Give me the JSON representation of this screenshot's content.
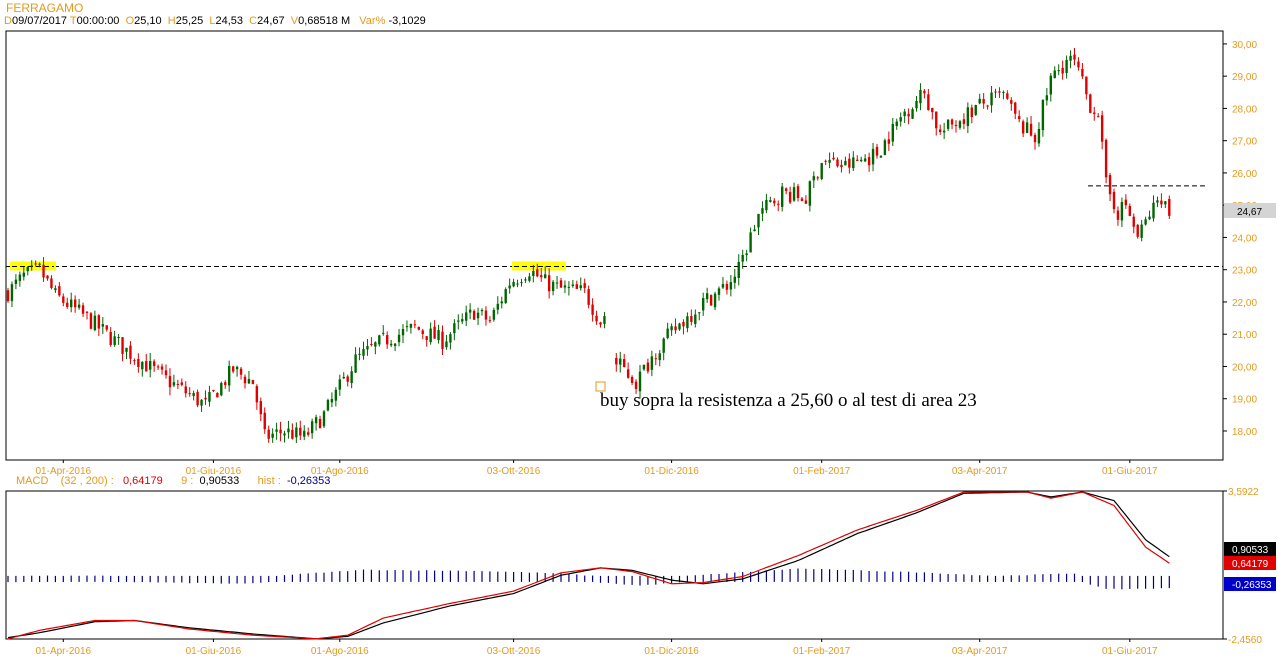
{
  "header": {
    "symbol": "FERRAGAMO",
    "date_key": "D",
    "date": "09/07/2017",
    "time_key": "T",
    "time": "00:00:00",
    "open_key": "O",
    "open": "25,10",
    "high_key": "H",
    "high": "25,25",
    "low_key": "L",
    "low": "24,53",
    "close_key": "C",
    "close": "24,67",
    "volume_key": "V",
    "volume": "0,68518 M",
    "var_key": "Var%",
    "var": "-3,1029"
  },
  "macd_header": {
    "name": "MACD",
    "params": "(32 , 200) :",
    "macd_value": "0,64179",
    "signal_label": "9 :",
    "signal_value": "0,90533",
    "hist_label": "hist :",
    "hist_value": "-0,26353"
  },
  "annotation": "buy sopra la resistenza a 25,60 o al test di area 23",
  "colors": {
    "up_candle": "#006600",
    "down_candle": "#e00000",
    "axis_text": "#e39a1e",
    "highlight": "#ffff00",
    "macd_line": "#e00000",
    "signal_line": "#000000",
    "histogram": "#000080"
  },
  "chart_data": [
    {
      "type": "candlestick",
      "title": "FERRAGAMO",
      "x_tick_labels": [
        "01-Apr-2016",
        "01-Giu-2016",
        "01-Ago-2016",
        "03-Ott-2016",
        "01-Dic-2016",
        "01-Feb-2017",
        "03-Apr-2017",
        "01-Giu-2017"
      ],
      "y_tick_labels": [
        "30,00",
        "29,00",
        "28,00",
        "27,00",
        "26,00",
        "25,00",
        "24,00",
        "23,00",
        "22,00",
        "21,00",
        "20,00",
        "19,00",
        "18,00"
      ],
      "ylim": [
        17.1,
        30.4
      ],
      "last_price_label": "24,67",
      "resistance_levels": [
        23.1,
        25.6
      ],
      "close_path_anchors": [
        [
          0,
          22.3
        ],
        [
          4,
          22.8
        ],
        [
          8,
          23.0
        ],
        [
          12,
          22.2
        ],
        [
          20,
          21.5
        ],
        [
          30,
          20.5
        ],
        [
          40,
          19.6
        ],
        [
          50,
          18.8
        ],
        [
          57,
          19.9
        ],
        [
          62,
          19.5
        ],
        [
          65,
          17.8
        ],
        [
          70,
          18.0
        ],
        [
          75,
          17.8
        ],
        [
          80,
          18.5
        ],
        [
          88,
          20.2
        ],
        [
          95,
          20.8
        ],
        [
          103,
          21.2
        ],
        [
          110,
          20.8
        ],
        [
          118,
          21.7
        ],
        [
          122,
          21.4
        ],
        [
          127,
          22.6
        ],
        [
          132,
          23.0
        ],
        [
          136,
          22.6
        ],
        [
          140,
          22.4
        ],
        [
          146,
          22.3
        ],
        [
          150,
          21.4
        ],
        [
          152,
          21.8
        ],
        [
          153,
          20.2
        ],
        [
          156,
          19.9
        ],
        [
          159,
          19.5
        ],
        [
          164,
          20.5
        ],
        [
          170,
          21.3
        ],
        [
          176,
          22.0
        ],
        [
          182,
          22.5
        ],
        [
          185,
          23.0
        ],
        [
          190,
          24.7
        ],
        [
          196,
          25.4
        ],
        [
          202,
          25.2
        ],
        [
          206,
          26.4
        ],
        [
          212,
          26.2
        ],
        [
          220,
          26.6
        ],
        [
          227,
          27.9
        ],
        [
          232,
          28.5
        ],
        [
          236,
          27.2
        ],
        [
          240,
          27.6
        ],
        [
          246,
          28.1
        ],
        [
          252,
          28.4
        ],
        [
          256,
          27.5
        ],
        [
          260,
          27.1
        ],
        [
          264,
          28.9
        ],
        [
          268,
          29.5
        ],
        [
          270,
          29.4
        ],
        [
          274,
          28.1
        ],
        [
          276,
          27.9
        ],
        [
          278,
          25.6
        ],
        [
          281,
          24.8
        ],
        [
          283,
          25.0
        ],
        [
          286,
          24.0
        ],
        [
          289,
          24.7
        ],
        [
          292,
          25.3
        ],
        [
          294,
          24.7
        ]
      ],
      "candle_count": 295
    },
    {
      "type": "line",
      "title": "MACD (32 , 200)",
      "y_tick_labels": [
        "3,5922",
        "-2,4560"
      ],
      "ylim": [
        -2.456,
        3.5922
      ],
      "series": [
        {
          "name": "MACD",
          "last_value": 0.64179,
          "anchors": [
            [
              0,
              -2.45
            ],
            [
              8,
              -2.1
            ],
            [
              22,
              -1.7
            ],
            [
              32,
              -1.7
            ],
            [
              46,
              -2.05
            ],
            [
              62,
              -2.3
            ],
            [
              78,
              -2.45
            ],
            [
              86,
              -2.3
            ],
            [
              95,
              -1.6
            ],
            [
              112,
              -1.0
            ],
            [
              128,
              -0.5
            ],
            [
              140,
              0.25
            ],
            [
              150,
              0.45
            ],
            [
              158,
              0.3
            ],
            [
              168,
              -0.2
            ],
            [
              176,
              -0.15
            ],
            [
              186,
              0.1
            ],
            [
              200,
              0.95
            ],
            [
              215,
              2.0
            ],
            [
              230,
              2.8
            ],
            [
              242,
              3.55
            ],
            [
              258,
              3.55
            ],
            [
              264,
              3.3
            ],
            [
              272,
              3.55
            ],
            [
              280,
              3.0
            ],
            [
              288,
              1.3
            ],
            [
              294,
              0.64179
            ]
          ]
        },
        {
          "name": "Signal 9",
          "last_value": 0.90533,
          "anchors": [
            [
              0,
              -2.4
            ],
            [
              8,
              -2.2
            ],
            [
              22,
              -1.75
            ],
            [
              32,
              -1.7
            ],
            [
              46,
              -2.0
            ],
            [
              62,
              -2.25
            ],
            [
              78,
              -2.45
            ],
            [
              86,
              -2.35
            ],
            [
              95,
              -1.8
            ],
            [
              112,
              -1.1
            ],
            [
              128,
              -0.6
            ],
            [
              140,
              0.15
            ],
            [
              150,
              0.45
            ],
            [
              158,
              0.35
            ],
            [
              168,
              -0.05
            ],
            [
              176,
              -0.2
            ],
            [
              186,
              0.0
            ],
            [
              200,
              0.75
            ],
            [
              215,
              1.85
            ],
            [
              230,
              2.7
            ],
            [
              242,
              3.5
            ],
            [
              258,
              3.55
            ],
            [
              264,
              3.35
            ],
            [
              272,
              3.55
            ],
            [
              280,
              3.2
            ],
            [
              288,
              1.6
            ],
            [
              294,
              0.90533
            ]
          ]
        },
        {
          "name": "hist",
          "last_value": -0.26353,
          "anchors": [
            [
              0,
              0.0
            ],
            [
              30,
              0.0
            ],
            [
              60,
              -0.08
            ],
            [
              90,
              0.25
            ],
            [
              120,
              0.2
            ],
            [
              140,
              0.1
            ],
            [
              160,
              -0.15
            ],
            [
              172,
              0.0
            ],
            [
              200,
              0.3
            ],
            [
              230,
              0.15
            ],
            [
              250,
              0.0
            ],
            [
              270,
              0.1
            ],
            [
              278,
              -0.3
            ],
            [
              294,
              -0.26353
            ]
          ]
        }
      ]
    }
  ]
}
